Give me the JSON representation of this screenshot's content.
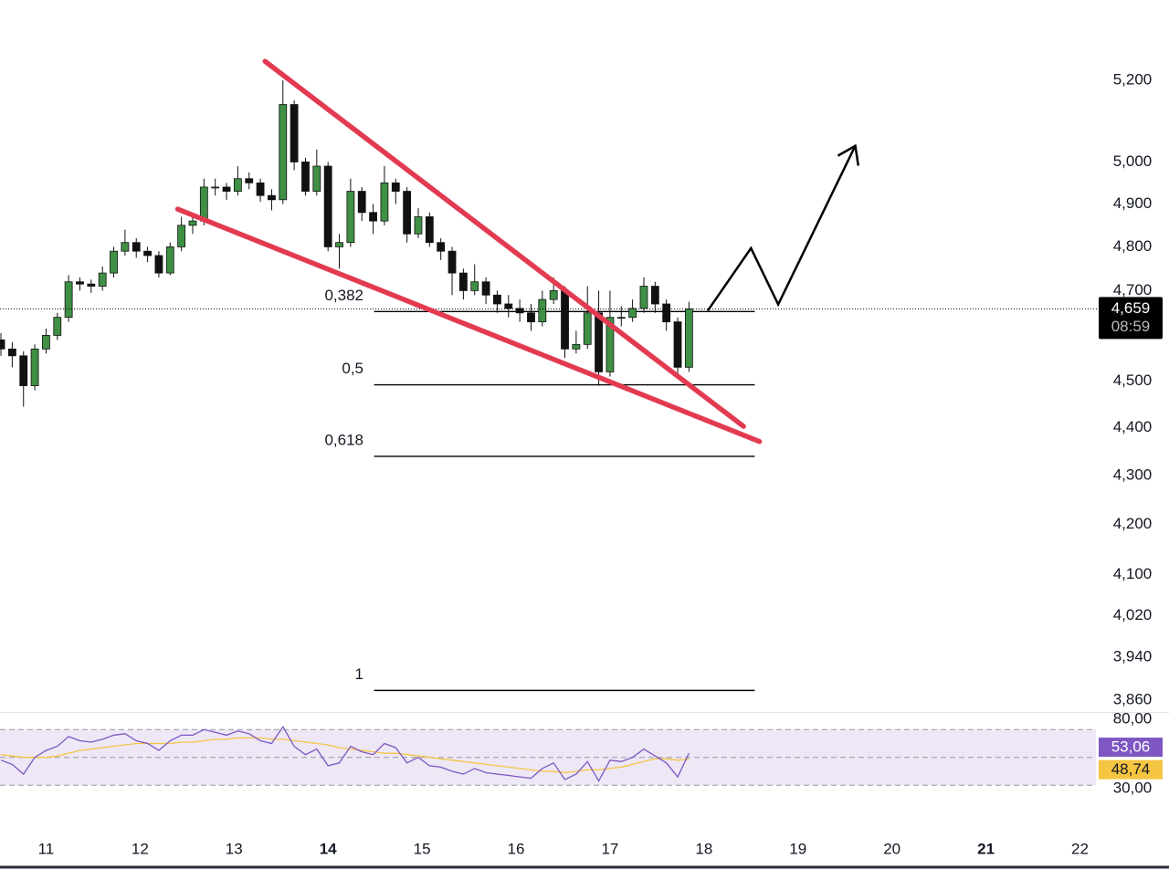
{
  "chart_data": {
    "type": "candlestick",
    "log_scale": true,
    "xlim": [
      10.51,
      22.17
    ],
    "ylim": [
      3838,
      5405
    ],
    "xticks": [
      11,
      12,
      13,
      14,
      15,
      16,
      17,
      18,
      19,
      20,
      21,
      22
    ],
    "xticks_bold": [
      14,
      21
    ],
    "yticks": [
      {
        "value": 5200,
        "label": "5,200"
      },
      {
        "value": 5000,
        "label": "5,000"
      },
      {
        "value": 4900,
        "label": "4,900"
      },
      {
        "value": 4800,
        "label": "4,800"
      },
      {
        "value": 4700,
        "label": "4,700"
      },
      {
        "value": 4500,
        "label": "4,500"
      },
      {
        "value": 4400,
        "label": "4,400"
      },
      {
        "value": 4300,
        "label": "4,300"
      },
      {
        "value": 4200,
        "label": "4,200"
      },
      {
        "value": 4100,
        "label": "4,100"
      },
      {
        "value": 4020,
        "label": "4,020"
      },
      {
        "value": 3940,
        "label": "3,940"
      },
      {
        "value": 3860,
        "label": "3,860"
      }
    ],
    "up_color": "#3f8f44",
    "down_color": "#111111",
    "candles": {
      "x": [
        10.52,
        10.64,
        10.76,
        10.88,
        11.0,
        11.12,
        11.24,
        11.36,
        11.48,
        11.6,
        11.72,
        11.84,
        11.96,
        12.08,
        12.2,
        12.32,
        12.44,
        12.56,
        12.68,
        12.8,
        12.92,
        13.04,
        13.16,
        13.28,
        13.4,
        13.52,
        13.64,
        13.76,
        13.88,
        14.0,
        14.12,
        14.24,
        14.36,
        14.48,
        14.6,
        14.72,
        14.84,
        14.96,
        15.08,
        15.2,
        15.32,
        15.44,
        15.56,
        15.68,
        15.8,
        15.92,
        16.04,
        16.16,
        16.28,
        16.4,
        16.52,
        16.64,
        16.76,
        16.88,
        17.0,
        17.12,
        17.24,
        17.36,
        17.48,
        17.6,
        17.72,
        17.84
      ],
      "open": [
        4590,
        4570,
        4555,
        4490,
        4570,
        4600,
        4640,
        4720,
        4715,
        4710,
        4740,
        4790,
        4810,
        4790,
        4780,
        4740,
        4800,
        4850,
        4860,
        4940,
        4940,
        4930,
        4960,
        4950,
        4920,
        4910,
        5140,
        5000,
        4930,
        4990,
        4800,
        4810,
        4930,
        4880,
        4860,
        4950,
        4930,
        4830,
        4870,
        4810,
        4790,
        4740,
        4700,
        4720,
        4690,
        4670,
        4660,
        4650,
        4630,
        4680,
        4700,
        4570,
        4580,
        4650,
        4520,
        4640,
        4640,
        4660,
        4710,
        4670,
        4630,
        4530
      ],
      "high": [
        4605,
        4585,
        4565,
        4580,
        4615,
        4650,
        4735,
        4730,
        4725,
        4755,
        4800,
        4840,
        4820,
        4800,
        4790,
        4810,
        4870,
        4880,
        4960,
        4960,
        4950,
        4990,
        4975,
        4960,
        4935,
        5200,
        5150,
        5010,
        5030,
        5000,
        4830,
        4960,
        4940,
        4900,
        4990,
        4960,
        4940,
        4890,
        4880,
        4820,
        4800,
        4750,
        4760,
        4730,
        4700,
        4690,
        4680,
        4670,
        4700,
        4730,
        4710,
        4610,
        4710,
        4700,
        4700,
        4665,
        4680,
        4730,
        4720,
        4680,
        4640,
        4675
      ],
      "low": [
        4555,
        4530,
        4445,
        4480,
        4560,
        4590,
        4630,
        4700,
        4695,
        4700,
        4730,
        4780,
        4775,
        4765,
        4730,
        4735,
        4790,
        4830,
        4850,
        4920,
        4910,
        4920,
        4935,
        4905,
        4885,
        4900,
        4980,
        4920,
        4920,
        4790,
        4750,
        4800,
        4860,
        4830,
        4850,
        4900,
        4810,
        4820,
        4800,
        4770,
        4690,
        4680,
        4690,
        4670,
        4650,
        4640,
        4630,
        4610,
        4620,
        4670,
        4550,
        4560,
        4570,
        4490,
        4510,
        4620,
        4630,
        4650,
        4650,
        4610,
        4510,
        4520
      ],
      "close": [
        4570,
        4555,
        4490,
        4570,
        4600,
        4640,
        4720,
        4715,
        4710,
        4740,
        4790,
        4810,
        4790,
        4780,
        4740,
        4800,
        4850,
        4860,
        4940,
        4940,
        4930,
        4960,
        4950,
        4920,
        4910,
        5140,
        5000,
        4930,
        4990,
        4800,
        4810,
        4930,
        4880,
        4860,
        4950,
        4930,
        4830,
        4870,
        4810,
        4790,
        4740,
        4700,
        4720,
        4690,
        4670,
        4660,
        4650,
        4630,
        4680,
        4700,
        4570,
        4580,
        4650,
        4520,
        4640,
        4640,
        4660,
        4710,
        4670,
        4630,
        4530,
        4659
      ]
    },
    "last_price": {
      "value": 4659,
      "label": "4,659"
    },
    "countdown": "08:59",
    "fib_levels": [
      {
        "value": 0.382,
        "label": "0,382",
        "price": 4653
      },
      {
        "value": 0.5,
        "label": "0,5",
        "price": 4492
      },
      {
        "value": 0.618,
        "label": "0,618",
        "price": 4340
      },
      {
        "value": 1,
        "label": "1",
        "price": 3878
      }
    ],
    "fib_x": [
      14.49,
      18.54
    ],
    "trendlines": [
      {
        "color": "#e23b51",
        "x": [
          13.33,
          18.42
        ],
        "price": [
          5248,
          4403
        ]
      },
      {
        "color": "#e23b51",
        "x": [
          12.4,
          18.59
        ],
        "price": [
          4888,
          4371
        ]
      }
    ],
    "projection": {
      "color": "#000000",
      "x": [
        18.04,
        18.5,
        18.79,
        19.61
      ],
      "price": [
        4655,
        4797,
        4669,
        5039
      ]
    },
    "rsi": {
      "ylim": [
        17,
        82
      ],
      "yticks": [
        {
          "value": 80,
          "label": "80,00"
        },
        {
          "value": 30,
          "label": "30,00"
        }
      ],
      "levels": [
        70,
        50,
        30
      ],
      "band": [
        30,
        70
      ],
      "color": "#7e57c2",
      "ma_color": "#f5c542",
      "values": [
        48,
        45,
        38,
        50,
        55,
        58,
        65,
        62,
        61,
        63,
        66,
        67,
        62,
        60,
        55,
        62,
        66,
        66,
        70,
        68,
        66,
        69,
        67,
        62,
        60,
        72,
        58,
        52,
        56,
        44,
        46,
        58,
        54,
        52,
        60,
        57,
        46,
        50,
        44,
        43,
        40,
        38,
        42,
        39,
        38,
        37,
        36,
        35,
        42,
        46,
        34,
        38,
        47,
        33,
        48,
        47,
        50,
        56,
        51,
        46,
        36,
        53.06
      ],
      "ma": [
        52,
        51,
        50,
        50,
        50,
        51,
        53,
        55,
        56,
        57,
        58,
        59,
        60,
        60,
        60,
        60,
        61,
        61,
        62,
        63,
        63,
        64,
        64,
        64,
        63,
        63,
        62,
        61,
        60,
        59,
        57,
        56,
        55,
        54,
        53,
        53,
        52,
        51,
        50,
        49,
        48,
        47,
        46,
        45,
        44,
        43,
        42,
        41,
        40,
        40,
        39,
        40,
        41,
        41,
        42,
        43,
        45,
        47,
        49,
        49,
        48,
        48.74
      ],
      "last_labels": [
        "53,06",
        "48,74"
      ]
    }
  }
}
